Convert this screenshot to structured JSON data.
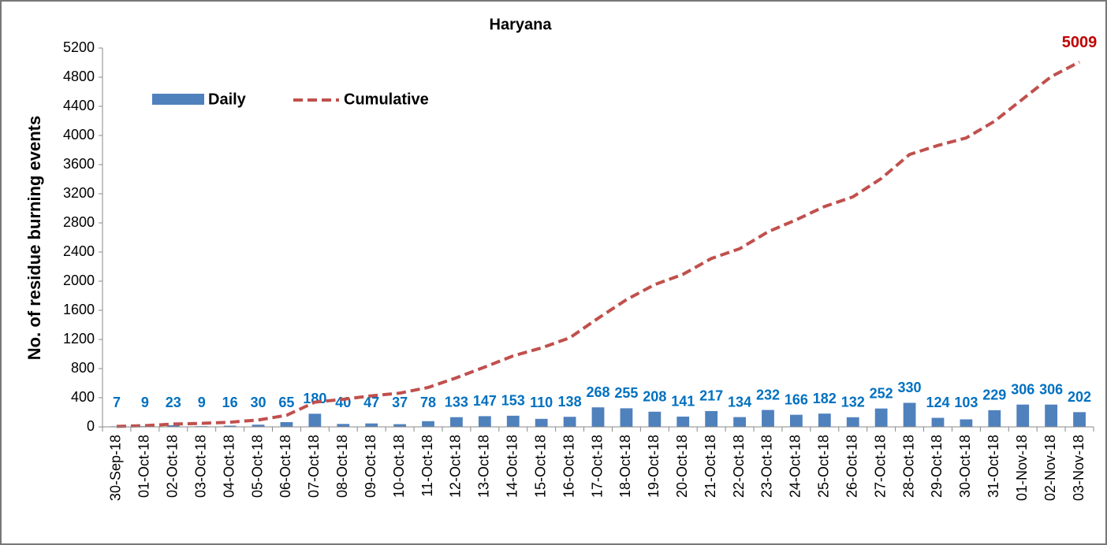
{
  "chart_data": {
    "type": "bar_line",
    "title": "Haryana",
    "y_label": "No. of residue burning events",
    "categories": [
      "30-Sep-18",
      "01-Oct-18",
      "02-Oct-18",
      "03-Oct-18",
      "04-Oct-18",
      "05-Oct-18",
      "06-Oct-18",
      "07-Oct-18",
      "08-Oct-18",
      "09-Oct-18",
      "10-Oct-18",
      "11-Oct-18",
      "12-Oct-18",
      "13-Oct-18",
      "14-Oct-18",
      "15-Oct-18",
      "16-Oct-18",
      "17-Oct-18",
      "18-Oct-18",
      "19-Oct-18",
      "20-Oct-18",
      "21-Oct-18",
      "22-Oct-18",
      "23-Oct-18",
      "24-Oct-18",
      "25-Oct-18",
      "26-Oct-18",
      "27-Oct-18",
      "28-Oct-18",
      "29-Oct-18",
      "30-Oct-18",
      "31-Oct-18",
      "01-Nov-18",
      "02-Nov-18",
      "03-Nov-18"
    ],
    "series": [
      {
        "name": "Daily",
        "type": "bar",
        "color": "#4f81bd",
        "values": [
          7,
          9,
          23,
          9,
          16,
          30,
          65,
          180,
          40,
          47,
          37,
          78,
          133,
          147,
          153,
          110,
          138,
          268,
          255,
          208,
          141,
          217,
          134,
          232,
          166,
          182,
          132,
          252,
          330,
          124,
          103,
          229,
          306,
          306,
          202
        ]
      },
      {
        "name": "Cumulative",
        "type": "line",
        "color": "#c0504d",
        "values": [
          7,
          16,
          39,
          48,
          64,
          94,
          159,
          339,
          379,
          426,
          463,
          541,
          674,
          821,
          974,
          1084,
          1222,
          1490,
          1745,
          1953,
          2094,
          2311,
          2445,
          2677,
          2843,
          3025,
          3157,
          3409,
          3739,
          3863,
          3966,
          4195,
          4501,
          4807,
          5009
        ]
      }
    ],
    "ylim": [
      0,
      5200
    ],
    "yticks": [
      0,
      400,
      800,
      1200,
      1600,
      2000,
      2400,
      2800,
      3200,
      3600,
      4000,
      4400,
      4800,
      5200
    ],
    "grid": false
  }
}
